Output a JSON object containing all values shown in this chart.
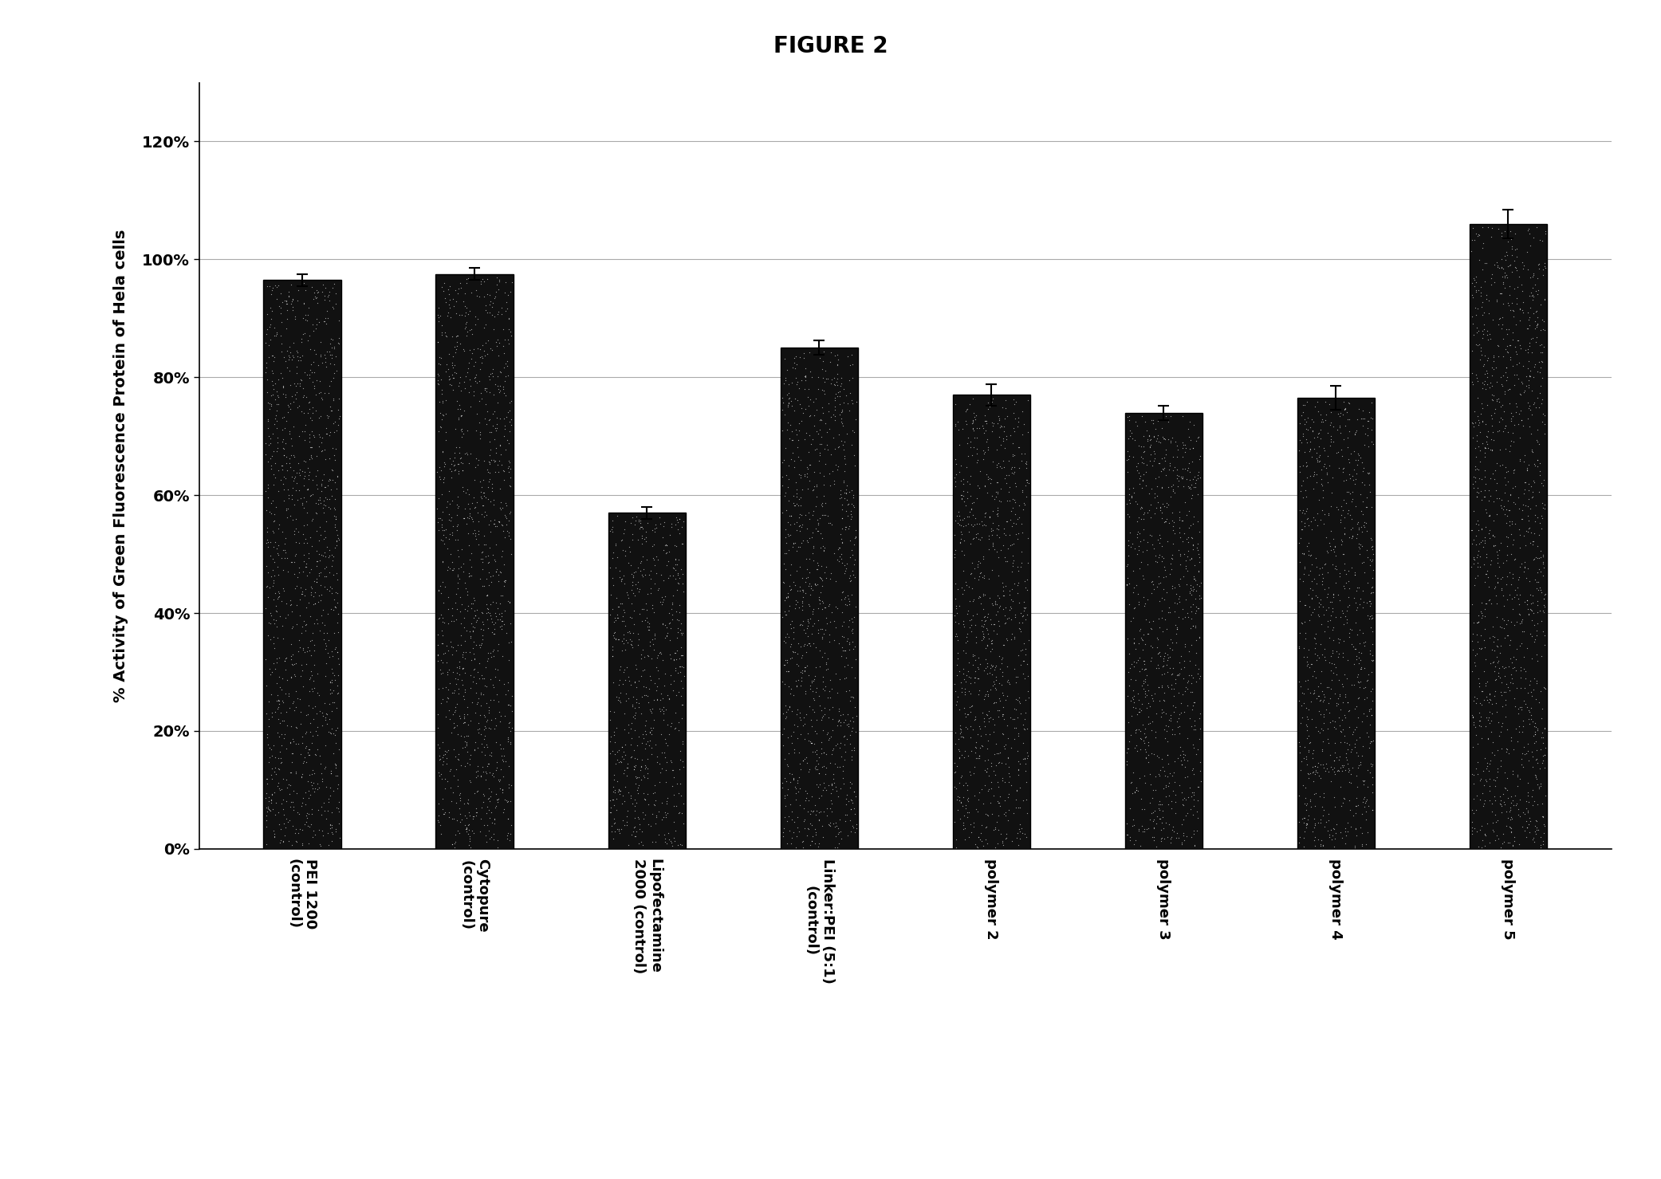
{
  "title": "FIGURE 2",
  "ylabel": "% Activity of Green Fluorescence Protein of Hela cells",
  "categories": [
    "PEI 1200\n(control)",
    "Cytopure\n(control)",
    "Lipofectamine\n2000 (control)",
    "Linker:PEI (5:1)\n(control)",
    "polymer 2",
    "polymer 3",
    "polymer 4",
    "polymer 5"
  ],
  "values": [
    0.965,
    0.975,
    0.57,
    0.85,
    0.77,
    0.74,
    0.765,
    1.06
  ],
  "errors": [
    0.01,
    0.01,
    0.01,
    0.012,
    0.018,
    0.012,
    0.02,
    0.025
  ],
  "bar_color": "#111111",
  "ylim": [
    0,
    1.3
  ],
  "yticks": [
    0.0,
    0.2,
    0.4,
    0.6,
    0.8,
    1.0,
    1.2
  ],
  "ytick_labels": [
    "0%",
    "20%",
    "40%",
    "60%",
    "80%",
    "100%",
    "120%"
  ],
  "title_fontsize": 20,
  "ylabel_fontsize": 14,
  "tick_fontsize": 14,
  "xtick_fontsize": 13,
  "background_color": "#ffffff",
  "error_color": "#000000",
  "bar_width": 0.45,
  "grid_color": "#aaaaaa",
  "spine_color": "#000000"
}
